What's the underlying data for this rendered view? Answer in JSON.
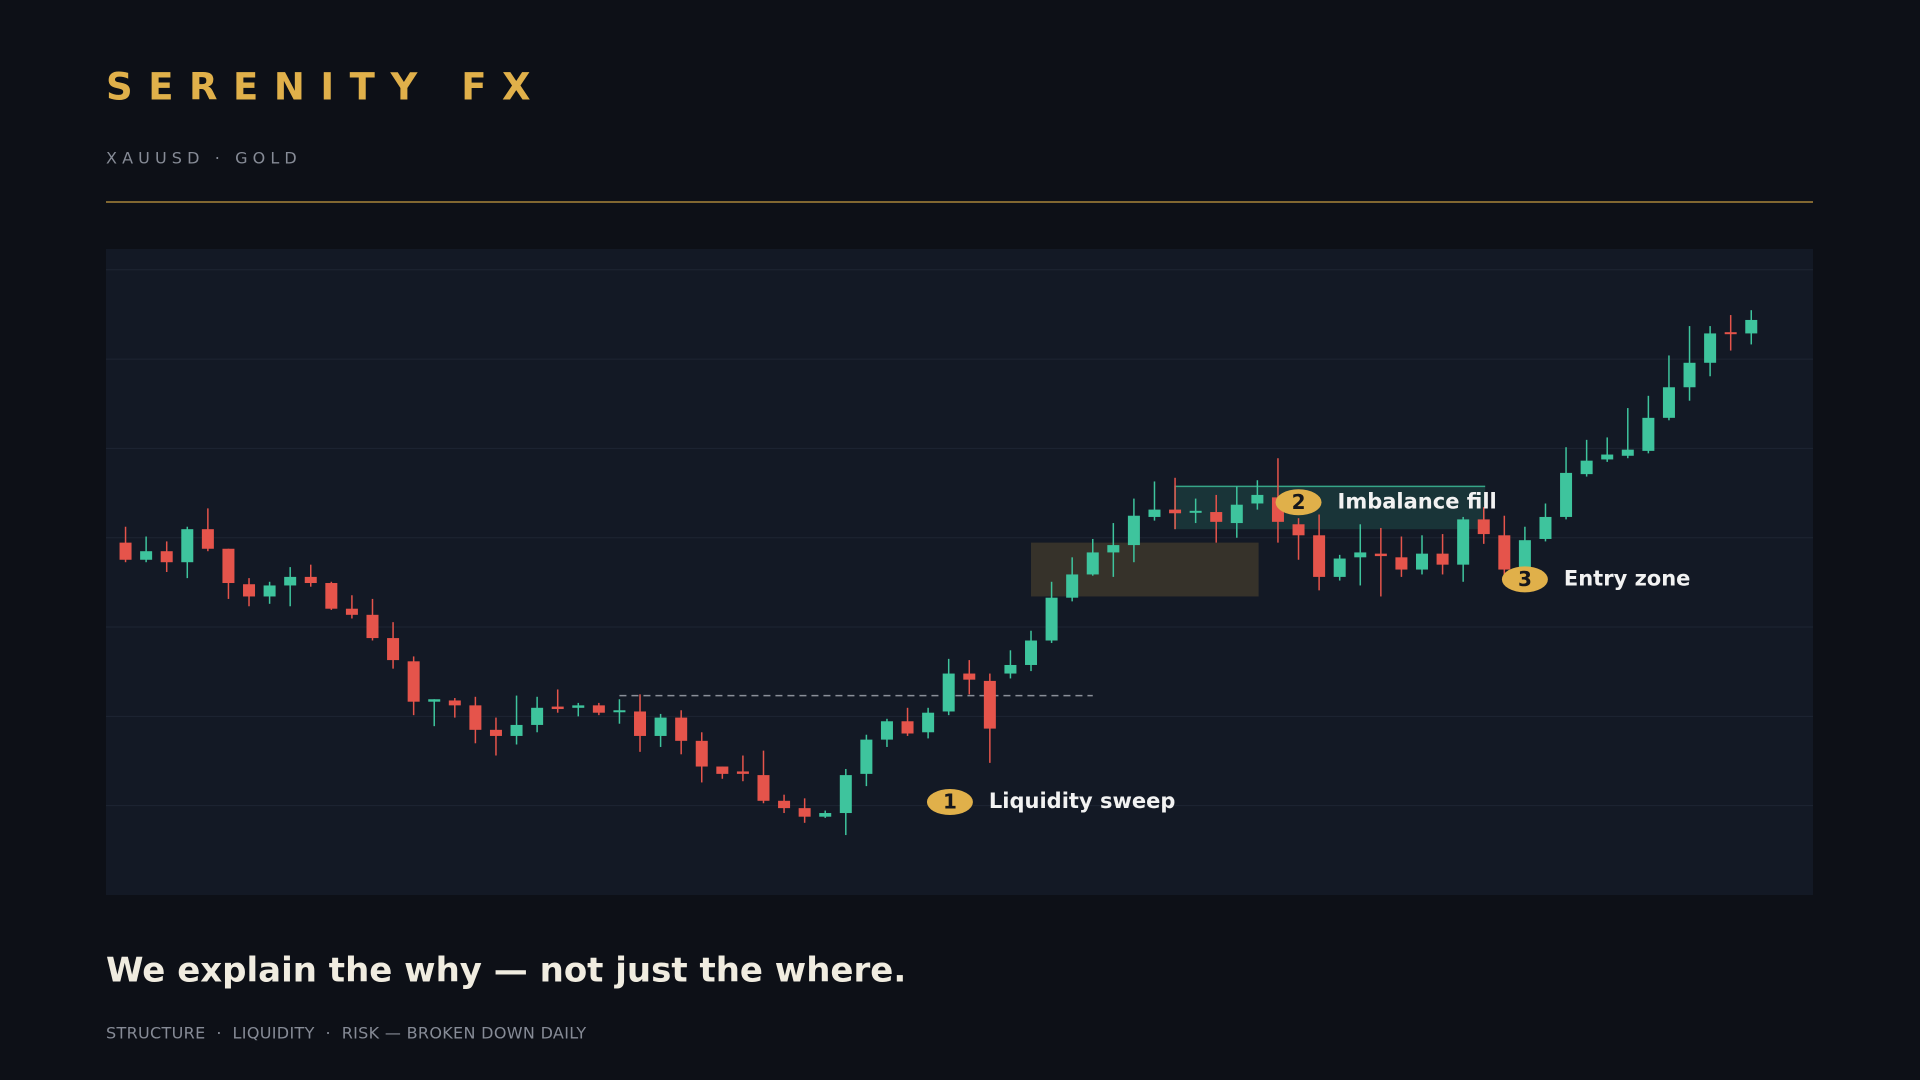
{
  "header": {
    "title": "SERENITY FX",
    "subtitle": "XAUUSD · GOLD"
  },
  "chart_data": {
    "type": "candlestick",
    "open": [
      288,
      274,
      281,
      272,
      299,
      283,
      254,
      244,
      253,
      260,
      255,
      234,
      229,
      210,
      191,
      158,
      159,
      155,
      135,
      130,
      139,
      154,
      153,
      155,
      150,
      150,
      130,
      145,
      126,
      105,
      101,
      98,
      77,
      71,
      64,
      67,
      99,
      127,
      142,
      133,
      150,
      181,
      175,
      181,
      188,
      208,
      243,
      262,
      280,
      286,
      309,
      315,
      313,
      313,
      304,
      320,
      325,
      303,
      294,
      260,
      276,
      279,
      276,
      266,
      279,
      270,
      307,
      294,
      267,
      291,
      309,
      344,
      356,
      359,
      363,
      390,
      415,
      435,
      460,
      459
    ],
    "high": [
      301,
      293,
      289,
      301,
      316,
      283,
      259,
      256,
      268,
      270,
      256,
      245,
      242,
      223,
      195,
      160,
      161,
      162,
      145,
      163,
      162,
      168,
      157,
      157,
      160,
      164,
      148,
      151,
      133,
      105,
      114,
      118,
      82,
      79,
      69,
      103,
      131,
      144,
      153,
      153,
      193,
      192,
      181,
      200,
      216,
      256,
      276,
      291,
      304,
      324,
      338,
      341,
      324,
      327,
      334,
      339,
      357,
      308,
      311,
      278,
      303,
      300,
      293,
      294,
      295,
      309,
      317,
      310,
      301,
      320,
      366,
      372,
      374,
      398,
      408,
      441,
      465,
      465,
      474,
      478
    ],
    "low": [
      272,
      272,
      264,
      259,
      281,
      242,
      236,
      238,
      236,
      252,
      233,
      226,
      208,
      185,
      147,
      138,
      145,
      124,
      114,
      123,
      133,
      149,
      146,
      147,
      140,
      117,
      121,
      115,
      92,
      95,
      93,
      75,
      67,
      59,
      63,
      49,
      89,
      121,
      130,
      128,
      147,
      164,
      108,
      177,
      183,
      206,
      240,
      261,
      260,
      272,
      306,
      299,
      304,
      288,
      292,
      315,
      288,
      274,
      249,
      257,
      253,
      244,
      260,
      262,
      262,
      256,
      287,
      260,
      262,
      289,
      307,
      342,
      354,
      357,
      361,
      388,
      404,
      424,
      445,
      450
    ],
    "close": [
      274,
      281,
      272,
      299,
      283,
      255,
      244,
      253,
      260,
      255,
      234,
      229,
      210,
      192,
      158,
      160,
      155,
      135,
      130,
      139,
      153,
      152,
      155,
      149,
      151,
      130,
      145,
      126,
      105,
      99,
      99,
      77,
      71,
      64,
      67,
      98,
      127,
      142,
      132,
      149,
      181,
      176,
      136,
      188,
      208,
      243,
      262,
      280,
      286,
      310,
      315,
      312,
      314,
      305,
      319,
      327,
      305,
      294,
      260,
      275,
      280,
      277,
      266,
      279,
      270,
      307,
      295,
      266,
      290,
      309,
      345,
      355,
      360,
      364,
      390,
      415,
      435,
      459,
      459,
      470
    ],
    "up_color": "#3ec49d",
    "down_color": "#e5544b",
    "xlim": [
      -0.95,
      82
    ],
    "ylim": [
      0,
      528
    ],
    "yticks": [
      73,
      146,
      219,
      292,
      365,
      438,
      511
    ],
    "grid": true,
    "level": {
      "value": 163,
      "x": [
        24,
        47
      ]
    },
    "zones": [
      {
        "x": [
          44,
          55.06
        ],
        "y": [
          244,
          288
        ],
        "color": "#36322a"
      },
      {
        "x": [
          51,
          66.07
        ],
        "y": [
          299,
          334
        ],
        "color": "#3ec49d"
      }
    ],
    "annotations": [
      {
        "number": "1",
        "text": "Liquidity sweep",
        "x": 40.06,
        "y": 76
      },
      {
        "number": "2",
        "text": "Imbalance fill",
        "x": 57,
        "y": 321
      },
      {
        "number": "3",
        "text": "Entry zone",
        "x": 68,
        "y": 258
      }
    ]
  },
  "footer": {
    "headline": "We explain the why — not just the where.",
    "tagline": "STRUCTURE  ·  LIQUIDITY  ·  RISK — BROKEN DOWN DAILY"
  }
}
